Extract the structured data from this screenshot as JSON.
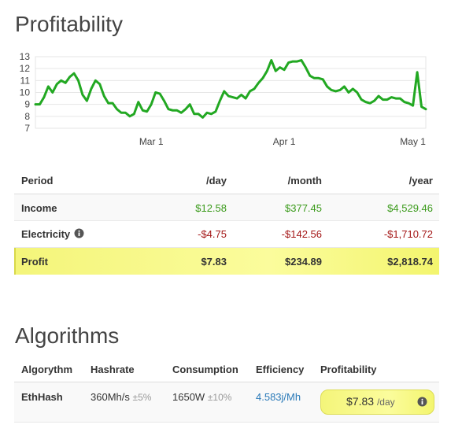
{
  "chart_data": {
    "type": "line",
    "title": "Profitability",
    "color": "#22a822",
    "grid": true,
    "ylim": [
      7,
      13
    ],
    "yticks": [
      7,
      8,
      9,
      10,
      11,
      12,
      13
    ],
    "categories": [
      null,
      null,
      null,
      null,
      null,
      null,
      null,
      null,
      null,
      null,
      null,
      null,
      null,
      null,
      null,
      null,
      null,
      null,
      null,
      null,
      null,
      null,
      null,
      null,
      null,
      null,
      null,
      "Mar 1",
      null,
      null,
      null,
      null,
      null,
      null,
      null,
      null,
      null,
      null,
      null,
      null,
      null,
      null,
      null,
      null,
      null,
      null,
      null,
      null,
      null,
      null,
      null,
      null,
      null,
      null,
      null,
      null,
      null,
      null,
      "Apr 1",
      null,
      null,
      null,
      null,
      null,
      null,
      null,
      null,
      null,
      null,
      null,
      null,
      null,
      null,
      null,
      null,
      null,
      null,
      null,
      null,
      null,
      null,
      null,
      null,
      null,
      null,
      null,
      null,
      null,
      "May 1",
      null,
      null,
      null
    ],
    "values": [
      9.0,
      9.0,
      9.6,
      10.5,
      10.0,
      10.7,
      11.0,
      10.8,
      11.3,
      11.6,
      11.0,
      9.8,
      9.3,
      10.3,
      11.0,
      10.7,
      9.7,
      9.1,
      9.1,
      8.6,
      8.3,
      8.3,
      8.0,
      8.2,
      9.2,
      8.5,
      8.4,
      9.0,
      10.0,
      9.9,
      9.3,
      8.6,
      8.5,
      8.5,
      8.3,
      8.6,
      9.0,
      8.2,
      8.2,
      7.9,
      8.3,
      8.2,
      8.4,
      9.3,
      10.1,
      9.7,
      9.6,
      9.5,
      9.8,
      9.5,
      10.1,
      10.3,
      10.8,
      11.2,
      11.8,
      12.7,
      11.8,
      12.1,
      11.9,
      12.5,
      12.6,
      12.6,
      12.7,
      12.1,
      11.4,
      11.2,
      11.2,
      11.1,
      10.5,
      10.2,
      10.1,
      10.2,
      10.5,
      10.0,
      10.3,
      10.0,
      9.4,
      9.2,
      9.1,
      9.3,
      9.7,
      9.4,
      9.4,
      9.6,
      9.5,
      9.5,
      9.2,
      9.1,
      8.9,
      11.7,
      8.8,
      8.6
    ]
  },
  "profit_table": {
    "headers": [
      "Period",
      "/day",
      "/month",
      "/year"
    ],
    "rows": [
      [
        "Income",
        "$12.58",
        "$377.45",
        "$4,529.46"
      ],
      [
        "Electricity",
        "-$4.75",
        "-$142.56",
        "-$1,710.72"
      ],
      [
        "Profit",
        "$7.83",
        "$234.89",
        "$2,818.74"
      ]
    ]
  },
  "algorithms": {
    "title": "Algorithms",
    "headers": [
      "Algorythm",
      "Hashrate",
      "Consumption",
      "Efficiency",
      "Profitability"
    ],
    "row": {
      "name": "EthHash",
      "hashrate": "360Mh/s",
      "hashrate_tolerance": "±5%",
      "consumption": "1650W",
      "consumption_tolerance": "±10%",
      "efficiency": "4.583j/Mh",
      "profitability": "$7.83",
      "profitability_unit": "/day"
    }
  }
}
